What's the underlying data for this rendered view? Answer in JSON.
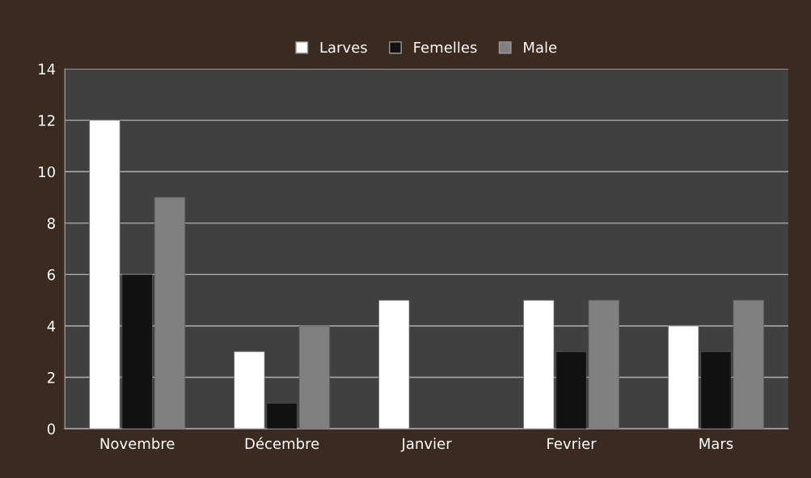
{
  "chart_data": {
    "type": "bar",
    "categories": [
      "Novembre",
      "Décembre",
      "Janvier",
      "Fevrier",
      "Mars"
    ],
    "series": [
      {
        "name": "Larves",
        "color": "#ffffff",
        "values": [
          12,
          3,
          5,
          5,
          4
        ]
      },
      {
        "name": "Femelles",
        "color": "#111111",
        "values": [
          6,
          1,
          null,
          3,
          3
        ]
      },
      {
        "name": "Male",
        "color": "#808080",
        "values": [
          9,
          4,
          null,
          5,
          5
        ]
      }
    ],
    "ylim": [
      0,
      14
    ],
    "yticks": [
      0,
      2,
      4,
      6,
      8,
      10,
      12,
      14
    ],
    "grid": "y",
    "legend": "top"
  }
}
